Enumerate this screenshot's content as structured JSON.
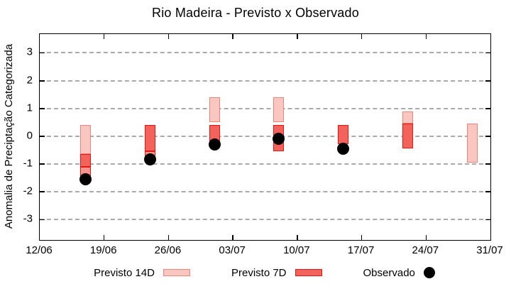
{
  "title": "Rio Madeira - Previsto x Observado",
  "y_axis": {
    "label": "Anomalia de Preciptação Categorizada",
    "tick_labels": [
      "3",
      "2",
      "1",
      "0",
      "-1",
      "-2",
      "-3"
    ],
    "tick_values": [
      3,
      2,
      1,
      0,
      -1,
      -2,
      -3
    ]
  },
  "x_axis": {
    "tick_labels": [
      "12/06",
      "19/06",
      "26/06",
      "03/07",
      "10/07",
      "17/07",
      "24/07",
      "31/07"
    ]
  },
  "legend": {
    "items": [
      {
        "label": "Previsto 14D",
        "swatch": "box-light"
      },
      {
        "label": "Previsto 7D",
        "swatch": "box-dark"
      },
      {
        "label": "Observado",
        "swatch": "dot-black"
      }
    ]
  },
  "colors": {
    "light_fill": "#f9c7c0",
    "light_stroke": "#ef847d",
    "dark_fill": "#f4625c",
    "medium_fill": "#f9948d",
    "red_stroke": "#e91511",
    "dot": "#000000",
    "grid": "#9c9c9c",
    "axis": "#000000"
  },
  "chart_data": {
    "type": "bar",
    "subtype": "range-bars-with-observed-scatter",
    "title": "Rio Madeira - Previsto x Observado",
    "xlabel": "",
    "ylabel": "Anomalia de Preciptação Categorizada",
    "ylim": [
      -3.7,
      3.7
    ],
    "x_tick_labels": [
      "12/06",
      "19/06",
      "26/06",
      "03/07",
      "10/07",
      "17/07",
      "24/07",
      "31/07"
    ],
    "grid": "horizontal dashed lines at integer y values",
    "legend_position": "bottom",
    "shade_legend": {
      "light": "Previsto 14D",
      "dark": "Previsto 7D (overlap with 14D appears dark)",
      "medium": "Previsto 7D alone",
      "dot": "Observado"
    },
    "bars": [
      {
        "x": "17/06",
        "segments": [
          {
            "shade": "light",
            "from": 0.4,
            "to": -0.65
          },
          {
            "shade": "dark",
            "from": -0.65,
            "to": -1.1
          },
          {
            "shade": "medium",
            "from": -1.1,
            "to": -1.45
          }
        ],
        "observado": -1.55
      },
      {
        "x": "24/06",
        "segments": [
          {
            "shade": "dark",
            "from": 0.4,
            "to": -0.55
          },
          {
            "shade": "medium",
            "from": -0.55,
            "to": -0.95
          }
        ],
        "observado": -0.85
      },
      {
        "x": "01/07",
        "segments": [
          {
            "shade": "light",
            "from": 1.4,
            "to": 0.5
          },
          {
            "shade": "dark",
            "from": 0.4,
            "to": -0.4
          }
        ],
        "observado": -0.3
      },
      {
        "x": "08/07",
        "segments": [
          {
            "shade": "light",
            "from": 1.4,
            "to": 0.5
          },
          {
            "shade": "dark",
            "from": 0.4,
            "to": -0.55
          }
        ],
        "observado": -0.1
      },
      {
        "x": "15/07",
        "segments": [
          {
            "shade": "dark",
            "from": 0.4,
            "to": -0.3
          }
        ],
        "observado": -0.45
      },
      {
        "x": "22/07",
        "segments": [
          {
            "shade": "light",
            "from": 0.9,
            "to": 0.45
          },
          {
            "shade": "dark",
            "from": 0.45,
            "to": -0.45
          }
        ],
        "observado": null
      },
      {
        "x": "29/07",
        "segments": [
          {
            "shade": "light",
            "from": 0.45,
            "to": -0.95
          }
        ],
        "observado": null
      }
    ]
  }
}
